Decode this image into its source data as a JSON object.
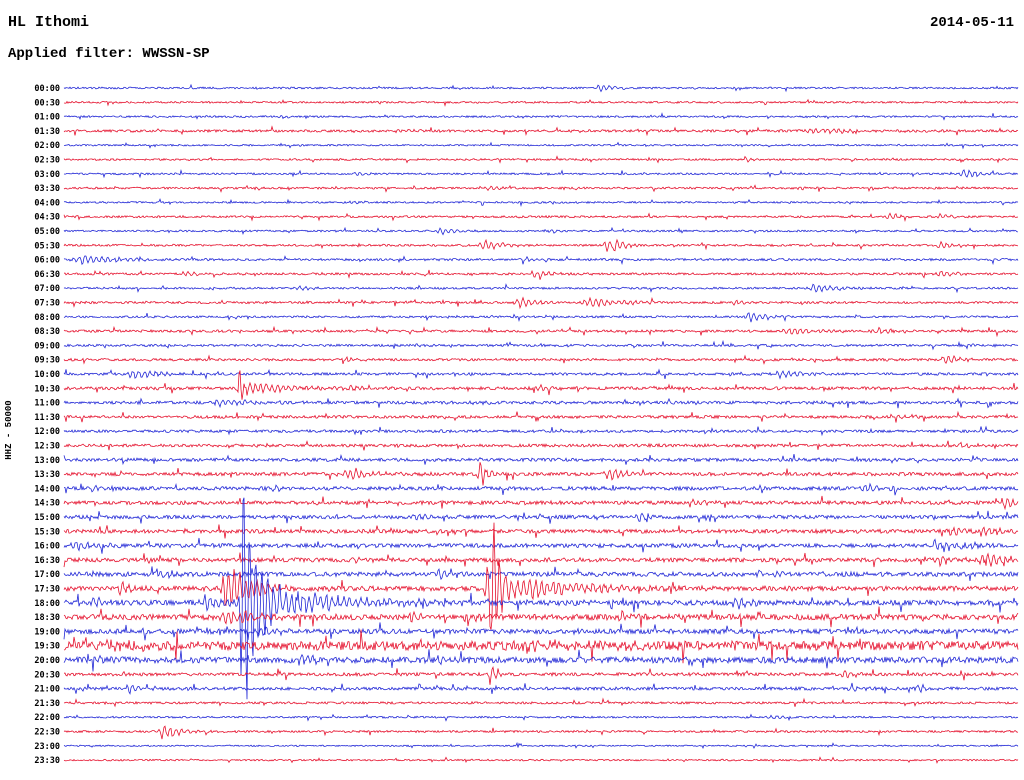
{
  "header": {
    "station": "HL Ithomi",
    "date": "2014-05-11",
    "filter_label": "Applied filter: WWSSN-SP"
  },
  "y_axis_label": "HHZ - 50000",
  "colors": {
    "blue": "#2228d6",
    "red": "#e5122e",
    "background": "#ffffff",
    "text": "#000000"
  },
  "chart_data": {
    "type": "line",
    "title": "Helicorder drum plot, station HL Ithomi, channel HHZ, 2014-05-11, WWSSN-SP filter",
    "line_interval_minutes": 30,
    "gain": 50000,
    "legend": "alternating blue (:00) and red (:30) half-hour traces",
    "rows": [
      {
        "time": "00:00",
        "color": "blue",
        "noise": 0.9,
        "events": [
          {
            "t": 0.562,
            "amp": 4,
            "w": 12
          }
        ]
      },
      {
        "time": "00:30",
        "color": "red",
        "noise": 0.9,
        "events": []
      },
      {
        "time": "01:00",
        "color": "blue",
        "noise": 0.9,
        "events": [
          {
            "t": 0.23,
            "amp": 2,
            "w": 8
          }
        ]
      },
      {
        "time": "01:30",
        "color": "red",
        "noise": 1.2,
        "events": [
          {
            "t": 0.792,
            "amp": 3,
            "w": 25
          },
          {
            "t": 0.35,
            "amp": 2,
            "w": 10
          }
        ]
      },
      {
        "time": "02:00",
        "color": "blue",
        "noise": 0.8,
        "events": []
      },
      {
        "time": "02:30",
        "color": "red",
        "noise": 0.9,
        "events": [
          {
            "t": 0.714,
            "amp": 3.5,
            "w": 5
          }
        ]
      },
      {
        "time": "03:00",
        "color": "blue",
        "noise": 0.9,
        "events": [
          {
            "t": 0.944,
            "amp": 5,
            "w": 9
          },
          {
            "t": 0.305,
            "amp": 2,
            "w": 8
          }
        ]
      },
      {
        "time": "03:30",
        "color": "red",
        "noise": 1.0,
        "events": [
          {
            "t": 0.447,
            "amp": 2.5,
            "w": 7
          },
          {
            "t": 0.77,
            "amp": 2,
            "w": 6
          }
        ]
      },
      {
        "time": "04:00",
        "color": "blue",
        "noise": 0.9,
        "events": [
          {
            "t": 0.3,
            "amp": 1.8,
            "w": 6
          }
        ]
      },
      {
        "time": "04:30",
        "color": "red",
        "noise": 1.0,
        "events": [
          {
            "t": 0.866,
            "amp": 4,
            "w": 7
          },
          {
            "t": 0.918,
            "amp": 3,
            "w": 6
          }
        ]
      },
      {
        "time": "05:00",
        "color": "blue",
        "noise": 0.9,
        "events": [
          {
            "t": 0.394,
            "amp": 4,
            "w": 9
          },
          {
            "t": 0.51,
            "amp": 2,
            "w": 7
          }
        ]
      },
      {
        "time": "05:30",
        "color": "red",
        "noise": 1.0,
        "events": [
          {
            "t": 0.441,
            "amp": 6,
            "w": 10
          },
          {
            "t": 0.568,
            "amp": 8,
            "w": 5
          },
          {
            "t": 0.578,
            "amp": 9,
            "w": 5
          },
          {
            "t": 0.918,
            "amp": 4,
            "w": 7
          }
        ]
      },
      {
        "time": "06:00",
        "color": "blue",
        "noise": 1.1,
        "events": [
          {
            "t": 0.022,
            "amp": 5,
            "w": 20
          },
          {
            "t": 0.483,
            "amp": 2.5,
            "w": 8
          }
        ]
      },
      {
        "time": "06:30",
        "color": "red",
        "noise": 1.1,
        "events": [
          {
            "t": 0.127,
            "amp": 3,
            "w": 7
          },
          {
            "t": 0.494,
            "amp": 4,
            "w": 10
          },
          {
            "t": 0.918,
            "amp": 4,
            "w": 8
          }
        ]
      },
      {
        "time": "07:00",
        "color": "blue",
        "noise": 1.0,
        "events": [
          {
            "t": 0.787,
            "amp": 5,
            "w": 10
          },
          {
            "t": 0.247,
            "amp": 2,
            "w": 8
          }
        ]
      },
      {
        "time": "07:30",
        "color": "red",
        "noise": 1.1,
        "events": [
          {
            "t": 0.478,
            "amp": 6,
            "w": 10
          },
          {
            "t": 0.553,
            "amp": 6,
            "w": 16
          },
          {
            "t": 0.703,
            "amp": 3,
            "w": 8
          }
        ]
      },
      {
        "time": "08:00",
        "color": "blue",
        "noise": 1.0,
        "events": [
          {
            "t": 0.719,
            "amp": 6,
            "w": 10
          }
        ]
      },
      {
        "time": "08:30",
        "color": "red",
        "noise": 1.2,
        "events": [
          {
            "t": 0.761,
            "amp": 4,
            "w": 18
          },
          {
            "t": 0.855,
            "amp": 3,
            "w": 14
          }
        ]
      },
      {
        "time": "09:00",
        "color": "blue",
        "noise": 1.1,
        "events": [
          {
            "t": 0.37,
            "amp": 2,
            "w": 8
          }
        ]
      },
      {
        "time": "09:30",
        "color": "red",
        "noise": 1.2,
        "events": [
          {
            "t": 0.924,
            "amp": 5,
            "w": 9
          },
          {
            "t": 0.3,
            "amp": 2,
            "w": 8
          }
        ]
      },
      {
        "time": "10:00",
        "color": "blue",
        "noise": 1.3,
        "events": [
          {
            "t": 0.074,
            "amp": 5,
            "w": 13
          },
          {
            "t": 0.751,
            "amp": 5,
            "w": 11
          }
        ]
      },
      {
        "time": "10:30",
        "color": "red",
        "noise": 1.5,
        "events": [
          {
            "t": 0.184,
            "amp": 28,
            "w": 5
          },
          {
            "t": 0.195,
            "amp": 8,
            "w": 22
          },
          {
            "t": 0.3,
            "amp": 3,
            "w": 10
          },
          {
            "t": 0.5,
            "amp": 2.5,
            "w": 9
          }
        ]
      },
      {
        "time": "11:00",
        "color": "blue",
        "noise": 1.5,
        "events": [
          {
            "t": 0.164,
            "amp": 4,
            "w": 18
          },
          {
            "t": 0.43,
            "amp": 2,
            "w": 8
          }
        ]
      },
      {
        "time": "11:30",
        "color": "red",
        "noise": 1.4,
        "events": [
          {
            "t": 0.877,
            "amp": 2.5,
            "w": 8
          }
        ]
      },
      {
        "time": "12:00",
        "color": "blue",
        "noise": 1.3,
        "events": [
          {
            "t": 0.385,
            "amp": 2,
            "w": 6
          }
        ]
      },
      {
        "time": "12:30",
        "color": "red",
        "noise": 1.4,
        "events": [
          {
            "t": 0.939,
            "amp": 3,
            "w": 8
          }
        ]
      },
      {
        "time": "13:00",
        "color": "blue",
        "noise": 1.6,
        "events": [
          {
            "t": 0.436,
            "amp": 3,
            "w": 5
          }
        ]
      },
      {
        "time": "13:30",
        "color": "red",
        "noise": 1.7,
        "events": [
          {
            "t": 0.3,
            "amp": 6,
            "w": 15
          },
          {
            "t": 0.436,
            "amp": 20,
            "w": 4
          },
          {
            "t": 0.572,
            "amp": 7,
            "w": 11
          }
        ]
      },
      {
        "time": "14:00",
        "color": "blue",
        "noise": 1.8,
        "events": [
          {
            "t": 0.84,
            "amp": 5,
            "w": 9
          },
          {
            "t": 0.03,
            "amp": 3,
            "w": 8
          },
          {
            "t": 0.22,
            "amp": 3,
            "w": 8
          }
        ]
      },
      {
        "time": "14:30",
        "color": "red",
        "noise": 1.8,
        "events": [
          {
            "t": 0.986,
            "amp": 6,
            "w": 8
          },
          {
            "t": 0.66,
            "amp": 3,
            "w": 8
          }
        ]
      },
      {
        "time": "15:00",
        "color": "blue",
        "noise": 1.8,
        "events": [
          {
            "t": 0.604,
            "amp": 5,
            "w": 9
          },
          {
            "t": 0.37,
            "amp": 3,
            "w": 8
          }
        ]
      },
      {
        "time": "15:30",
        "color": "red",
        "noise": 1.9,
        "events": [
          {
            "t": 0.965,
            "amp": 7,
            "w": 11
          },
          {
            "t": 0.93,
            "amp": 4,
            "w": 8
          }
        ]
      },
      {
        "time": "16:00",
        "color": "blue",
        "noise": 2.0,
        "events": [
          {
            "t": 0.012,
            "amp": 7,
            "w": 10
          },
          {
            "t": 0.913,
            "amp": 6,
            "w": 7
          },
          {
            "t": 0.944,
            "amp": 5,
            "w": 7
          }
        ]
      },
      {
        "time": "16:30",
        "color": "red",
        "noise": 2.0,
        "events": [
          {
            "t": 0.965,
            "amp": 9,
            "w": 12
          },
          {
            "t": 0.918,
            "amp": 5,
            "w": 8
          },
          {
            "t": 0.305,
            "amp": 3,
            "w": 9
          }
        ]
      },
      {
        "time": "17:00",
        "color": "blue",
        "noise": 2.2,
        "events": [
          {
            "t": 0.101,
            "amp": 5,
            "w": 9
          },
          {
            "t": 0.394,
            "amp": 5,
            "w": 9
          },
          {
            "t": 0.73,
            "amp": 4,
            "w": 9
          }
        ]
      },
      {
        "time": "17:30",
        "color": "red",
        "noise": 2.4,
        "events": [
          {
            "t": 0.059,
            "amp": 8,
            "w": 5
          },
          {
            "t": 0.172,
            "amp": 26,
            "w": 14
          },
          {
            "t": 0.447,
            "amp": 48,
            "w": 9
          },
          {
            "t": 0.449,
            "amp": 75,
            "w": 2.5
          },
          {
            "t": 0.47,
            "amp": 16,
            "w": 26
          },
          {
            "t": 0.5,
            "amp": 7,
            "w": 40
          }
        ]
      },
      {
        "time": "18:00",
        "color": "blue",
        "noise": 2.6,
        "events": [
          {
            "t": 0.032,
            "amp": 7,
            "w": 8
          },
          {
            "t": 0.148,
            "amp": 9,
            "w": 10
          },
          {
            "t": 0.188,
            "amp": 160,
            "w": 6
          },
          {
            "t": 0.205,
            "amp": 38,
            "w": 28
          },
          {
            "t": 0.24,
            "amp": 15,
            "w": 50
          },
          {
            "t": 0.703,
            "amp": 6,
            "w": 10
          }
        ]
      },
      {
        "time": "18:30",
        "color": "red",
        "noise": 2.8,
        "events": [
          {
            "t": 0.174,
            "amp": 8,
            "w": 20
          },
          {
            "t": 0.363,
            "amp": 7,
            "w": 9
          },
          {
            "t": 0.42,
            "amp": 6,
            "w": 8
          },
          {
            "t": 0.583,
            "amp": 5,
            "w": 9
          }
        ]
      },
      {
        "time": "19:00",
        "color": "blue",
        "noise": 2.4,
        "events": [
          {
            "t": 0.2,
            "amp": 5,
            "w": 14
          },
          {
            "t": 0.53,
            "amp": 3,
            "w": 8
          }
        ]
      },
      {
        "time": "19:30",
        "color": "red",
        "noise": 4.5,
        "events": [
          {
            "t": 0.05,
            "amp": 4,
            "w": 30
          },
          {
            "t": 0.5,
            "amp": 3,
            "w": 60
          }
        ]
      },
      {
        "time": "20:00",
        "color": "blue",
        "noise": 3.0,
        "events": [
          {
            "t": 0.247,
            "amp": 6,
            "w": 9
          },
          {
            "t": 0.394,
            "amp": 7,
            "w": 7
          },
          {
            "t": 0.032,
            "amp": 4,
            "w": 8
          }
        ]
      },
      {
        "time": "20:30",
        "color": "red",
        "noise": 1.6,
        "events": [
          {
            "t": 0.447,
            "amp": 14,
            "w": 2.5
          },
          {
            "t": 0.819,
            "amp": 4,
            "w": 7
          }
        ]
      },
      {
        "time": "21:00",
        "color": "blue",
        "noise": 1.5,
        "events": [
          {
            "t": 0.069,
            "amp": 5,
            "w": 11
          },
          {
            "t": 0.824,
            "amp": 4,
            "w": 7
          },
          {
            "t": 0.897,
            "amp": 4,
            "w": 7
          }
        ]
      },
      {
        "time": "21:30",
        "color": "red",
        "noise": 1.1,
        "events": []
      },
      {
        "time": "22:00",
        "color": "blue",
        "noise": 0.9,
        "events": [
          {
            "t": 0.74,
            "amp": 3,
            "w": 5
          }
        ]
      },
      {
        "time": "22:30",
        "color": "red",
        "noise": 1.0,
        "events": [
          {
            "t": 0.106,
            "amp": 6,
            "w": 13
          }
        ]
      },
      {
        "time": "23:00",
        "color": "blue",
        "noise": 0.7,
        "events": []
      },
      {
        "time": "23:30",
        "color": "red",
        "noise": 0.8,
        "events": []
      }
    ]
  }
}
